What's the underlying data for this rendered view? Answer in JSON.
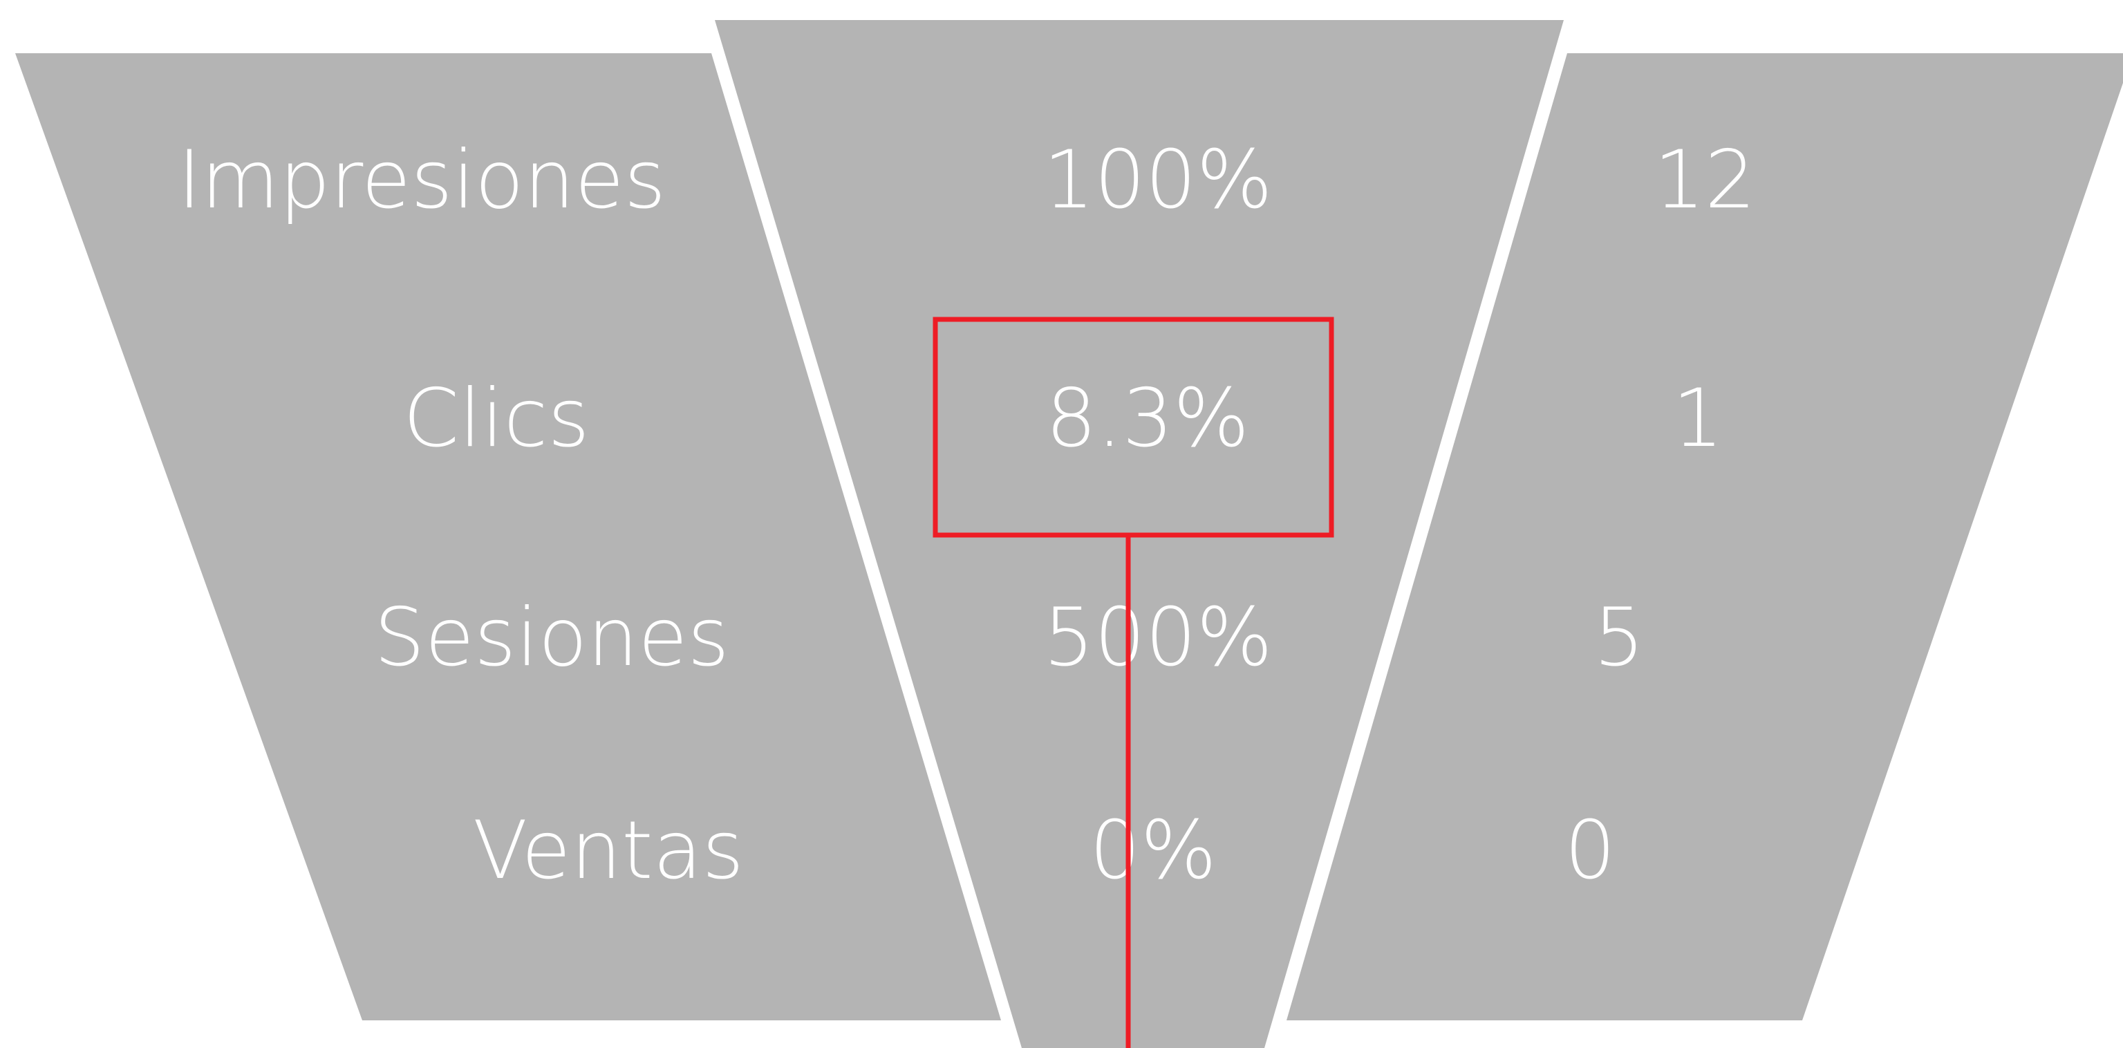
{
  "chart_data": {
    "type": "funnel",
    "stages": [
      "Impresiones",
      "Clics",
      "Sesiones",
      "Ventas"
    ],
    "percentages": [
      "100%",
      "8.3%",
      "500%",
      "0%"
    ],
    "counts": [
      12,
      1,
      5,
      0
    ],
    "highlighted_stage": "Clics"
  },
  "colors": {
    "segment_fill": "#b4b4b4",
    "text": "#ffffff",
    "highlight": "#ee1c25",
    "background": "#ffffff"
  }
}
